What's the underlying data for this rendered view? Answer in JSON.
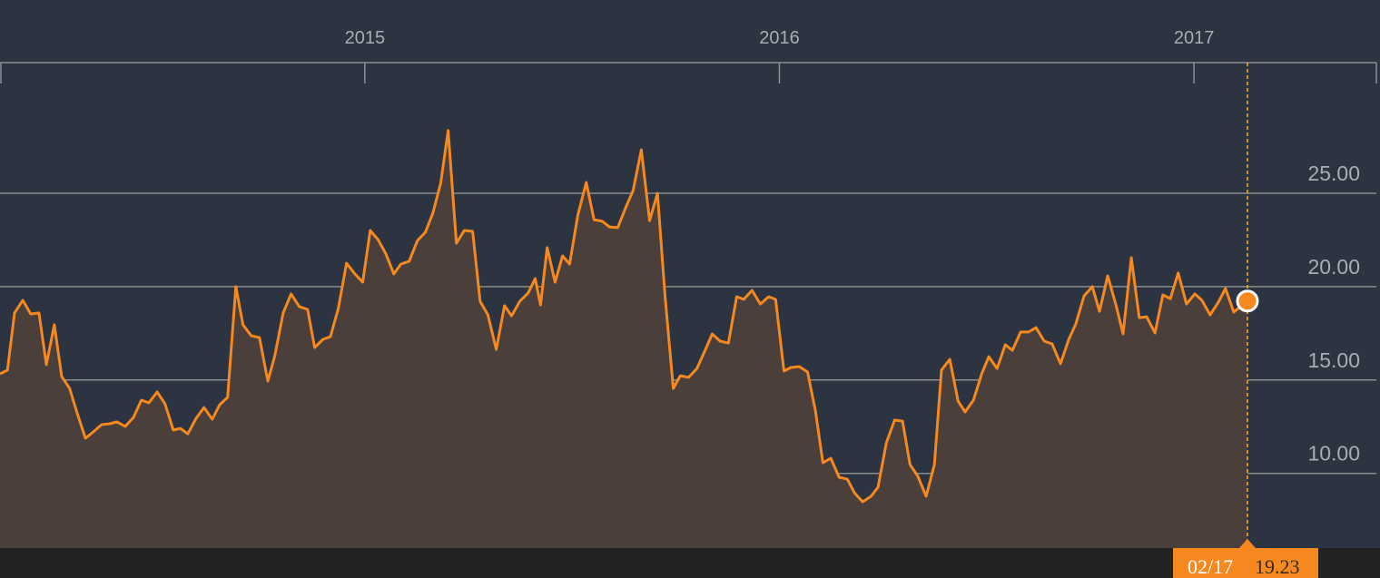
{
  "chart_data": {
    "type": "area",
    "x": [
      2014.12,
      2014.138,
      2014.155,
      2014.175,
      2014.194,
      2014.214,
      2014.232,
      2014.251,
      2014.269,
      2014.288,
      2014.306,
      2014.326,
      2014.345,
      2014.365,
      2014.385,
      2014.402,
      2014.422,
      2014.442,
      2014.461,
      2014.479,
      2014.499,
      2014.518,
      2014.538,
      2014.555,
      2014.573,
      2014.593,
      2014.612,
      2014.632,
      2014.65,
      2014.669,
      2014.689,
      2014.706,
      2014.726,
      2014.746,
      2014.766,
      2014.783,
      2014.803,
      2014.822,
      2014.842,
      2014.862,
      2014.879,
      2014.899,
      2014.917,
      2014.936,
      2014.956,
      2014.976,
      2014.995,
      2015.013,
      2015.032,
      2015.05,
      2015.07,
      2015.087,
      2015.107,
      2015.127,
      2015.146,
      2015.164,
      2015.183,
      2015.201,
      2015.221,
      2015.24,
      2015.26,
      2015.278,
      2015.297,
      2015.317,
      2015.337,
      2015.354,
      2015.374,
      2015.394,
      2015.411,
      2015.424,
      2015.44,
      2015.459,
      2015.477,
      2015.494,
      2015.514,
      2015.534,
      2015.553,
      2015.573,
      2015.59,
      2015.61,
      2015.63,
      2015.647,
      2015.667,
      2015.687,
      2015.706,
      2015.724,
      2015.744,
      2015.761,
      2015.781,
      2015.801,
      2015.82,
      2015.838,
      2015.857,
      2015.877,
      2015.897,
      2015.914,
      2015.934,
      2015.954,
      2015.974,
      2015.991,
      2016.011,
      2016.028,
      2016.048,
      2016.068,
      2016.087,
      2016.105,
      2016.124,
      2016.144,
      2016.164,
      2016.181,
      2016.201,
      2016.221,
      2016.238,
      2016.258,
      2016.278,
      2016.297,
      2016.315,
      2016.334,
      2016.354,
      2016.374,
      2016.391,
      2016.411,
      2016.431,
      2016.448,
      2016.468,
      2016.488,
      2016.505,
      2016.525,
      2016.545,
      2016.562,
      2016.582,
      2016.601,
      2016.619,
      2016.639,
      2016.658,
      2016.678,
      2016.698,
      2016.715,
      2016.735,
      2016.755,
      2016.772,
      2016.792,
      2016.812,
      2016.829,
      2016.849,
      2016.868,
      2016.886,
      2016.906,
      2016.925,
      2016.943,
      2016.962,
      2016.982,
      2017.002,
      2017.019,
      2017.039,
      2017.059,
      2017.076,
      2017.096,
      2017.129
    ],
    "series": [
      {
        "color": "#f5891f",
        "values": [
          15.33,
          15.53,
          18.59,
          19.27,
          18.54,
          18.59,
          15.82,
          17.96,
          15.18,
          14.55,
          13.24,
          11.88,
          12.22,
          12.61,
          12.66,
          12.76,
          12.51,
          13.0,
          13.92,
          13.78,
          14.36,
          13.73,
          12.32,
          12.41,
          12.12,
          12.95,
          13.53,
          12.9,
          13.68,
          14.07,
          20.0,
          17.96,
          17.37,
          17.27,
          14.94,
          16.3,
          18.59,
          19.61,
          18.93,
          18.78,
          16.74,
          17.18,
          17.32,
          18.83,
          21.26,
          20.68,
          20.24,
          23.01,
          22.52,
          21.79,
          20.68,
          21.21,
          21.36,
          22.47,
          22.91,
          23.93,
          25.54,
          28.36,
          22.33,
          23.01,
          22.96,
          19.22,
          18.49,
          16.64,
          18.98,
          18.44,
          19.22,
          19.66,
          20.43,
          19.02,
          22.09,
          20.24,
          21.65,
          21.21,
          23.84,
          25.58,
          23.59,
          23.5,
          23.2,
          23.16,
          24.27,
          25.15,
          27.33,
          23.54,
          25.0,
          19.56,
          14.55,
          15.23,
          15.14,
          15.62,
          16.55,
          17.47,
          17.08,
          16.98,
          19.46,
          19.32,
          19.8,
          19.07,
          19.46,
          19.32,
          15.48,
          15.67,
          15.72,
          15.43,
          13.34,
          10.57,
          10.81,
          9.79,
          9.69,
          8.96,
          8.48,
          8.77,
          9.26,
          11.64,
          12.85,
          12.8,
          10.47,
          9.84,
          8.77,
          10.47,
          15.53,
          16.11,
          13.87,
          13.29,
          13.92,
          15.33,
          16.25,
          15.62,
          16.89,
          16.59,
          17.57,
          17.57,
          17.81,
          17.08,
          16.93,
          15.87,
          17.18,
          18.0,
          19.51,
          20.0,
          18.68,
          20.58,
          19.02,
          17.47,
          21.55,
          18.34,
          18.39,
          17.52,
          19.56,
          19.36,
          20.73,
          19.07,
          19.61,
          19.27,
          18.49,
          19.17,
          19.9,
          18.64,
          19.23
        ]
      }
    ],
    "area_color": "#4a3f3a",
    "cursor_label": "02/17",
    "xlim": [
      2014.12,
      2017.44
    ],
    "xticks": [
      2015,
      2016,
      2017
    ],
    "ylim": [
      6.0,
      32.0
    ],
    "yticks": [
      {
        "value": 10,
        "label": "10.00"
      },
      {
        "value": 15,
        "label": "15.00"
      },
      {
        "value": 20,
        "label": "20.00"
      },
      {
        "value": 25,
        "label": "25.00"
      }
    ],
    "grid": true
  }
}
